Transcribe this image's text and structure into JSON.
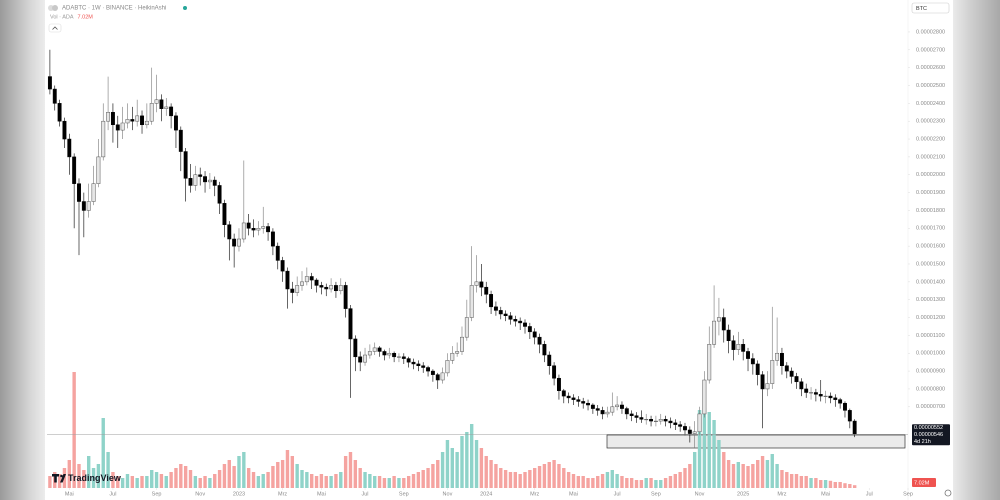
{
  "chart_data": {
    "type": "candlestick",
    "title": "ADABTC · 1W · BINANCE · HeikinAshi",
    "currency": "BTC",
    "brand": "TradingView",
    "up_color": "#e6e6e6",
    "down_color": "#000000",
    "grid": false,
    "log_scale": false,
    "open": [
      2.55e-05,
      2.48e-05,
      2.4e-05,
      2.3e-05,
      2.2e-05,
      2.1e-05,
      1.95e-05,
      1.85e-05,
      1.8e-05,
      1.85e-05,
      1.95e-05,
      2.1e-05,
      2.3e-05,
      2.35e-05,
      2.28e-05,
      2.25e-05,
      2.29e-05,
      2.31e-05,
      2.3e-05,
      2.33e-05,
      2.28e-05,
      2.3e-05,
      2.4e-05,
      2.42e-05,
      2.37e-05,
      2.38e-05,
      2.33e-05,
      2.25e-05,
      2.13e-05,
      1.98e-05,
      1.94e-05,
      2e-05,
      1.99e-05,
      1.96e-05,
      1.97e-05,
      1.94e-05,
      1.84e-05,
      1.72e-05,
      1.64e-05,
      1.6e-05,
      1.64e-05,
      1.73e-05,
      1.7e-05,
      1.69e-05,
      1.7e-05,
      1.71e-05,
      1.68e-05,
      1.6e-05,
      1.52e-05,
      1.46e-05,
      1.36e-05,
      1.34e-05,
      1.38e-05,
      1.4e-05,
      1.43e-05,
      1.41e-05,
      1.38e-05,
      1.37e-05,
      1.36e-05,
      1.38e-05,
      1.35e-05,
      1.38e-05,
      1.25e-05,
      1.08e-05,
      9.8e-06,
      9.5e-06,
      9.9e-06,
      1.01e-05,
      1.03e-05,
      1.01e-05,
      9.9e-06,
      1e-05,
      9.8e-06,
      9.8e-06,
      9.7e-06,
      9.5e-06,
      9.4e-06,
      9.3e-06,
      9.2e-06,
      9e-06,
      8.8e-06,
      8.5e-06,
      8.9e-06,
      9.6e-06,
      1e-05,
      1.01e-05,
      1.09e-05,
      1.2e-05,
      1.38e-05,
      1.4e-05,
      1.37e-05,
      1.33e-05,
      1.26e-05,
      1.24e-05,
      1.22e-05,
      1.21e-05,
      1.19e-05,
      1.18e-05,
      1.17e-05,
      1.15e-05,
      1.12e-05,
      1.09e-05,
      1.05e-05,
      9.9e-06,
      9.3e-06,
      8.6e-06,
      7.9e-06,
      7.6e-06,
      7.5e-06,
      7.4e-06,
      7.3e-06,
      7.2e-06,
      7.1e-06,
      6.9e-06,
      6.8e-06,
      6.6e-06,
      6.7e-06,
      7e-06,
      7.1e-06,
      6.9e-06,
      6.6e-06,
      6.5e-06,
      6.4e-06,
      6.3e-06,
      6.3e-06,
      6.2e-06,
      6.2e-06,
      6.3e-06,
      6.2e-06,
      6.1e-06,
      6e-06,
      5.9e-06,
      5.7e-06,
      5.5e-06,
      5.6e-06,
      6.6e-06,
      8.5e-06,
      1.05e-05,
      1.18e-05,
      1.2e-05,
      1.13e-05,
      1.07e-05,
      1.02e-05,
      1.05e-05,
      1.01e-05,
      9.7e-06,
      9.4e-06,
      8.8e-06,
      8e-06,
      8.3e-06,
      9.6e-06,
      1e-05,
      9.3e-06,
      9e-06,
      8.7e-06,
      8.4e-06,
      8e-06,
      7.8e-06,
      7.8e-06,
      7.7e-06,
      7.6e-06,
      7.6e-06,
      7.5e-06,
      7.4e-06,
      7.2e-06,
      6.8e-06,
      6.2e-06
    ],
    "high": [
      2.7e-05,
      2.5e-05,
      2.42e-05,
      2.32e-05,
      2.23e-05,
      2.12e-05,
      1.98e-05,
      1.9e-05,
      1.95e-05,
      2.05e-05,
      2.2e-05,
      2.4e-05,
      2.55e-05,
      2.4e-05,
      2.33e-05,
      2.38e-05,
      2.4e-05,
      2.38e-05,
      2.42e-05,
      2.36e-05,
      2.4e-05,
      2.6e-05,
      2.56e-05,
      2.45e-05,
      2.43e-05,
      2.4e-05,
      2.35e-05,
      2.27e-05,
      2.15e-05,
      2.06e-05,
      2.05e-05,
      2.04e-05,
      2.02e-05,
      2.01e-05,
      1.99e-05,
      1.96e-05,
      1.86e-05,
      1.74e-05,
      1.67e-05,
      1.7e-05,
      2.08e-05,
      1.78e-05,
      1.75e-05,
      1.74e-05,
      1.82e-05,
      1.73e-05,
      1.7e-05,
      1.62e-05,
      1.54e-05,
      1.48e-05,
      1.4e-05,
      1.43e-05,
      1.46e-05,
      1.48e-05,
      1.45e-05,
      1.42e-05,
      1.4e-05,
      1.39e-05,
      1.42e-05,
      1.4e-05,
      1.42e-05,
      1.4e-05,
      1.27e-05,
      1.1e-05,
      1.01e-05,
      1.03e-05,
      1.05e-05,
      1.06e-05,
      1.04e-05,
      1.02e-05,
      1.03e-05,
      1.01e-05,
      1e-05,
      1e-05,
      9.8e-06,
      9.7e-06,
      9.6e-06,
      9.5e-06,
      9.3e-06,
      9.1e-06,
      8.9e-06,
      9.2e-06,
      1e-05,
      1.04e-05,
      1.06e-05,
      1.15e-05,
      1.3e-05,
      1.6e-05,
      1.55e-05,
      1.5e-05,
      1.4e-05,
      1.35e-05,
      1.29e-05,
      1.26e-05,
      1.24e-05,
      1.23e-05,
      1.21e-05,
      1.2e-05,
      1.19e-05,
      1.17e-05,
      1.14e-05,
      1.11e-05,
      1.07e-05,
      1.01e-05,
      9.5e-06,
      8.8e-06,
      8e-06,
      7.8e-06,
      7.7e-06,
      7.6e-06,
      7.5e-06,
      7.4e-06,
      7.2e-06,
      7.1e-06,
      7e-06,
      7e-06,
      7.8e-06,
      7.6e-06,
      7.3e-06,
      7e-06,
      6.8e-06,
      6.7e-06,
      6.8e-06,
      6.6e-06,
      6.5e-06,
      6.5e-06,
      6.6e-06,
      6.5e-06,
      6.4e-06,
      6.3e-06,
      6.2e-06,
      6.1e-06,
      5.9e-06,
      6.2e-06,
      7e-06,
      9e-06,
      1.15e-05,
      1.38e-05,
      1.31e-05,
      1.25e-05,
      1.16e-05,
      1.1e-05,
      1.12e-05,
      1.08e-05,
      1.03e-05,
      1e-05,
      9.6e-06,
      9e-06,
      9e-06,
      1.26e-05,
      1.2e-05,
      1.03e-05,
      9.5e-06,
      9.2e-06,
      8.9e-06,
      8.6e-06,
      8.3e-06,
      8.1e-06,
      8e-06,
      8.5e-06,
      7.9e-06,
      7.8e-06,
      7.7e-06,
      7.5e-06,
      7.3e-06,
      6.9e-06,
      6.3e-06
    ],
    "low": [
      2.45e-05,
      2.36e-05,
      2.27e-05,
      2.15e-05,
      2e-05,
      1.7e-05,
      1.55e-05,
      1.65e-05,
      1.76e-05,
      1.83e-05,
      1.93e-05,
      2.08e-05,
      2.25e-05,
      2.18e-05,
      2.15e-05,
      2.2e-05,
      2.26e-05,
      2.25e-05,
      2.27e-05,
      2.23e-05,
      2.26e-05,
      2.28e-05,
      2.35e-05,
      2.3e-05,
      2.33e-05,
      2.26e-05,
      2.15e-05,
      2.02e-05,
      1.85e-05,
      1.9e-05,
      1.91e-05,
      1.94e-05,
      1.9e-05,
      1.92e-05,
      1.88e-05,
      1.78e-05,
      1.65e-05,
      1.52e-05,
      1.48e-05,
      1.57e-05,
      1.62e-05,
      1.66e-05,
      1.65e-05,
      1.66e-05,
      1.67e-05,
      1.63e-05,
      1.55e-05,
      1.47e-05,
      1.4e-05,
      1.25e-05,
      1.28e-05,
      1.32e-05,
      1.35e-05,
      1.38e-05,
      1.36e-05,
      1.34e-05,
      1.33e-05,
      1.32e-05,
      1.34e-05,
      1.31e-05,
      1.33e-05,
      1.2e-05,
      7.5e-06,
      9e-06,
      9e-06,
      9.3e-06,
      9.7e-06,
      9.9e-06,
      9.8e-06,
      9.6e-06,
      9.7e-06,
      9.5e-06,
      9.5e-06,
      9.4e-06,
      9.2e-06,
      9.1e-06,
      9e-06,
      8.9e-06,
      8.7e-06,
      8.4e-06,
      8e-06,
      8.3e-06,
      8.7e-06,
      9.4e-06,
      9.8e-06,
      9.9e-06,
      1.07e-05,
      1.18e-05,
      1.34e-05,
      1.32e-05,
      1.28e-05,
      1.22e-05,
      1.21e-05,
      1.19e-05,
      1.18e-05,
      1.16e-05,
      1.15e-05,
      1.13e-05,
      1.11e-05,
      1.08e-05,
      1.05e-05,
      1e-05,
      9.5e-06,
      8.8e-06,
      8.2e-06,
      7.4e-06,
      7.2e-06,
      7.2e-06,
      7.1e-06,
      7e-06,
      6.9e-06,
      6.8e-06,
      6.6e-06,
      6.5e-06,
      6.3e-06,
      6.4e-06,
      6.5e-06,
      6.8e-06,
      6.6e-06,
      6.3e-06,
      6.2e-06,
      6.1e-06,
      6.1e-06,
      6e-06,
      5.9e-06,
      5.9e-06,
      6e-06,
      5.9e-06,
      5.8e-06,
      5.7e-06,
      5.6e-06,
      5.4e-06,
      5e-06,
      4.7e-06,
      5.4e-06,
      6.4e-06,
      8.3e-06,
      1.03e-05,
      1.1e-05,
      1.06e-05,
      1e-05,
      9.6e-06,
      9.9e-06,
      9.6e-06,
      9e-06,
      8.8e-06,
      8.2e-06,
      5.8e-06,
      7.6e-06,
      8e-06,
      9.3e-06,
      8.8e-06,
      8.6e-06,
      8.3e-06,
      8e-06,
      7.6e-06,
      7.5e-06,
      7.4e-06,
      7.3e-06,
      7.3e-06,
      7.2e-06,
      7.2e-06,
      7e-06,
      6.9e-06,
      6.4e-06,
      5.8e-06,
      5.3e-06
    ],
    "close": [
      2.48e-05,
      2.4e-05,
      2.3e-05,
      2.2e-05,
      2.1e-05,
      1.95e-05,
      1.85e-05,
      1.8e-05,
      1.85e-05,
      1.95e-05,
      2.1e-05,
      2.3e-05,
      2.35e-05,
      2.28e-05,
      2.25e-05,
      2.29e-05,
      2.31e-05,
      2.3e-05,
      2.33e-05,
      2.28e-05,
      2.3e-05,
      2.4e-05,
      2.42e-05,
      2.37e-05,
      2.38e-05,
      2.33e-05,
      2.25e-05,
      2.13e-05,
      1.98e-05,
      1.94e-05,
      2e-05,
      1.99e-05,
      1.96e-05,
      1.97e-05,
      1.94e-05,
      1.84e-05,
      1.72e-05,
      1.64e-05,
      1.6e-05,
      1.64e-05,
      1.73e-05,
      1.7e-05,
      1.69e-05,
      1.7e-05,
      1.71e-05,
      1.68e-05,
      1.6e-05,
      1.52e-05,
      1.46e-05,
      1.36e-05,
      1.34e-05,
      1.38e-05,
      1.4e-05,
      1.43e-05,
      1.41e-05,
      1.38e-05,
      1.37e-05,
      1.36e-05,
      1.38e-05,
      1.35e-05,
      1.38e-05,
      1.25e-05,
      1.08e-05,
      9.8e-06,
      9.5e-06,
      9.9e-06,
      1.01e-05,
      1.03e-05,
      1.01e-05,
      9.9e-06,
      1e-05,
      9.8e-06,
      9.8e-06,
      9.7e-06,
      9.5e-06,
      9.4e-06,
      9.3e-06,
      9.2e-06,
      9e-06,
      8.8e-06,
      8.5e-06,
      8.9e-06,
      9.6e-06,
      1e-05,
      1.01e-05,
      1.09e-05,
      1.2e-05,
      1.38e-05,
      1.4e-05,
      1.37e-05,
      1.33e-05,
      1.26e-05,
      1.24e-05,
      1.22e-05,
      1.21e-05,
      1.19e-05,
      1.18e-05,
      1.17e-05,
      1.15e-05,
      1.12e-05,
      1.09e-05,
      1.05e-05,
      9.9e-06,
      9.3e-06,
      8.6e-06,
      7.9e-06,
      7.6e-06,
      7.5e-06,
      7.4e-06,
      7.3e-06,
      7.2e-06,
      7.1e-06,
      6.9e-06,
      6.8e-06,
      6.6e-06,
      6.7e-06,
      7e-06,
      7.1e-06,
      6.9e-06,
      6.6e-06,
      6.5e-06,
      6.4e-06,
      6.3e-06,
      6.3e-06,
      6.2e-06,
      6.2e-06,
      6.3e-06,
      6.2e-06,
      6.1e-06,
      6e-06,
      5.9e-06,
      5.7e-06,
      5.5e-06,
      5.6e-06,
      6.6e-06,
      8.5e-06,
      1.05e-05,
      1.18e-05,
      1.2e-05,
      1.13e-05,
      1.07e-05,
      1.02e-05,
      1.05e-05,
      1.01e-05,
      9.7e-06,
      9.4e-06,
      8.8e-06,
      8e-06,
      8.3e-06,
      9.6e-06,
      1e-05,
      9.3e-06,
      9e-06,
      8.7e-06,
      8.4e-06,
      8e-06,
      7.8e-06,
      7.8e-06,
      7.7e-06,
      7.6e-06,
      7.6e-06,
      7.5e-06,
      7.4e-06,
      7.2e-06,
      6.8e-06,
      6.2e-06,
      5.46e-06
    ],
    "volume": {
      "name": "Vol · ADA",
      "up_color": "#8fd3c9",
      "down_color": "#f5a3a0",
      "last_label": "7.02M",
      "values": [
        30000000.0,
        40000000.0,
        35000000.0,
        50000000.0,
        70000000.0,
        290000000.0,
        60000000.0,
        45000000.0,
        80000000.0,
        50000000.0,
        60000000.0,
        175000000.0,
        90000000.0,
        40000000.0,
        30000000.0,
        25000000.0,
        35000000.0,
        30000000.0,
        25000000.0,
        30000000.0,
        30000000.0,
        45000000.0,
        40000000.0,
        35000000.0,
        30000000.0,
        40000000.0,
        50000000.0,
        60000000.0,
        55000000.0,
        45000000.0,
        30000000.0,
        25000000.0,
        30000000.0,
        25000000.0,
        35000000.0,
        45000000.0,
        60000000.0,
        70000000.0,
        55000000.0,
        80000000.0,
        90000000.0,
        50000000.0,
        40000000.0,
        30000000.0,
        35000000.0,
        40000000.0,
        55000000.0,
        65000000.0,
        70000000.0,
        95000000.0,
        80000000.0,
        60000000.0,
        45000000.0,
        40000000.0,
        35000000.0,
        30000000.0,
        35000000.0,
        30000000.0,
        30000000.0,
        35000000.0,
        40000000.0,
        80000000.0,
        90000000.0,
        70000000.0,
        50000000.0,
        40000000.0,
        35000000.0,
        30000000.0,
        30000000.0,
        25000000.0,
        25000000.0,
        30000000.0,
        25000000.0,
        25000000.0,
        30000000.0,
        35000000.0,
        40000000.0,
        45000000.0,
        50000000.0,
        60000000.0,
        70000000.0,
        90000000.0,
        120000000.0,
        100000000.0,
        90000000.0,
        130000000.0,
        140000000.0,
        160000000.0,
        120000000.0,
        100000000.0,
        80000000.0,
        70000000.0,
        60000000.0,
        50000000.0,
        45000000.0,
        40000000.0,
        40000000.0,
        35000000.0,
        40000000.0,
        45000000.0,
        50000000.0,
        55000000.0,
        60000000.0,
        65000000.0,
        70000000.0,
        60000000.0,
        50000000.0,
        40000000.0,
        35000000.0,
        30000000.0,
        30000000.0,
        25000000.0,
        25000000.0,
        30000000.0,
        35000000.0,
        40000000.0,
        45000000.0,
        35000000.0,
        30000000.0,
        25000000.0,
        25000000.0,
        20000000.0,
        20000000.0,
        25000000.0,
        25000000.0,
        20000000.0,
        20000000.0,
        25000000.0,
        30000000.0,
        35000000.0,
        40000000.0,
        50000000.0,
        60000000.0,
        90000000.0,
        195000000.0,
        200000000.0,
        190000000.0,
        170000000.0,
        120000000.0,
        90000000.0,
        70000000.0,
        60000000.0,
        65000000.0,
        60000000.0,
        55000000.0,
        60000000.0,
        70000000.0,
        80000000.0,
        70000000.0,
        85000000.0,
        60000000.0,
        45000000.0,
        40000000.0,
        35000000.0,
        35000000.0,
        30000000.0,
        30000000.0,
        25000000.0,
        25000000.0,
        20000000.0,
        20000000.0,
        18000000.0,
        15000000.0,
        15000000.0,
        12000000.0,
        10000000.0,
        7020000.0
      ]
    },
    "vlim": [
      0,
      300000000.0
    ],
    "xlim": [
      -0.6,
      177
    ],
    "xticks": [
      {
        "value": 4,
        "label": "Mai"
      },
      {
        "value": 13,
        "label": "Jul"
      },
      {
        "value": 22,
        "label": "Sep"
      },
      {
        "value": 31,
        "label": "Nov"
      },
      {
        "value": 39,
        "label": "2023"
      },
      {
        "value": 48,
        "label": "Mrz"
      },
      {
        "value": 56,
        "label": "Mai"
      },
      {
        "value": 65,
        "label": "Jul"
      },
      {
        "value": 73,
        "label": "Sep"
      },
      {
        "value": 82,
        "label": "Nov"
      },
      {
        "value": 90,
        "label": "2024"
      },
      {
        "value": 100,
        "label": "Mrz"
      },
      {
        "value": 108,
        "label": "Mai"
      },
      {
        "value": 117,
        "label": "Jul"
      },
      {
        "value": 125,
        "label": "Sep"
      },
      {
        "value": 134,
        "label": "Nov"
      },
      {
        "value": 143,
        "label": "2025"
      },
      {
        "value": 151,
        "label": "Mrz"
      },
      {
        "value": 160,
        "label": "Mai"
      },
      {
        "value": 169,
        "label": "Jul"
      },
      {
        "value": 177,
        "label": "Sep"
      }
    ],
    "ylim": [
      2.45e-06,
      2.979e-05
    ],
    "yticks": [
      {
        "value": 2.8e-05,
        "label": "0.00002800"
      },
      {
        "value": 2.7e-05,
        "label": "0.00002700"
      },
      {
        "value": 2.6e-05,
        "label": "0.00002600"
      },
      {
        "value": 2.5e-05,
        "label": "0.00002500"
      },
      {
        "value": 2.4e-05,
        "label": "0.00002400"
      },
      {
        "value": 2.3e-05,
        "label": "0.00002300"
      },
      {
        "value": 2.2e-05,
        "label": "0.00002200"
      },
      {
        "value": 2.1e-05,
        "label": "0.00002100"
      },
      {
        "value": 2e-05,
        "label": "0.00002000"
      },
      {
        "value": 1.9e-05,
        "label": "0.00001900"
      },
      {
        "value": 1.8e-05,
        "label": "0.00001800"
      },
      {
        "value": 1.7e-05,
        "label": "0.00001700"
      },
      {
        "value": 1.6e-05,
        "label": "0.00001600"
      },
      {
        "value": 1.5e-05,
        "label": "0.00001500"
      },
      {
        "value": 1.4e-05,
        "label": "0.00001400"
      },
      {
        "value": 1.3e-05,
        "label": "0.00001300"
      },
      {
        "value": 1.2e-05,
        "label": "0.00001200"
      },
      {
        "value": 1.1e-05,
        "label": "0.00001100"
      },
      {
        "value": 1e-05,
        "label": "0.00001000"
      },
      {
        "value": 9e-06,
        "label": "0.00000900"
      },
      {
        "value": 8e-06,
        "label": "0.00000800"
      },
      {
        "value": 7e-06,
        "label": "0.00000700"
      }
    ],
    "price_labels": [
      "0.00000552",
      "0.00000546",
      "4d 21h"
    ]
  }
}
